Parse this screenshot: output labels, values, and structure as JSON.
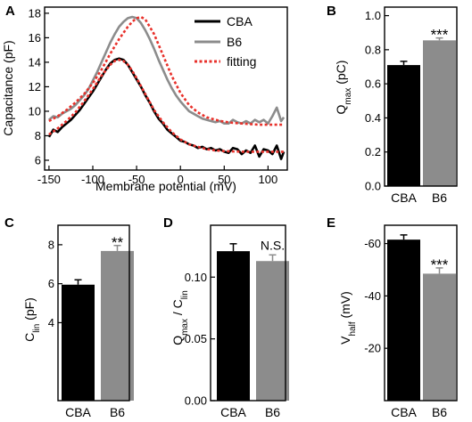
{
  "colors": {
    "cba": "#000000",
    "b6": "#8c8c8c",
    "fitting": "#e8312b",
    "axis": "#000000"
  },
  "chart_data": [
    {
      "panel": "A",
      "type": "line",
      "xlabel": "Membrane potential (mV)",
      "ylabel": "Capacitance (pF)",
      "xlim": [
        -155,
        122
      ],
      "ylim": [
        5.2,
        18.5
      ],
      "xticks": [
        -150,
        -100,
        -50,
        0,
        50,
        100
      ],
      "yticks": [
        6,
        8,
        10,
        12,
        14,
        16,
        18
      ],
      "legend": {
        "placement": "top-right",
        "entries": [
          "CBA",
          "B6",
          "fitting"
        ]
      },
      "series": [
        {
          "name": "CBA",
          "x": [
            -150,
            -145,
            -140,
            -135,
            -130,
            -125,
            -120,
            -115,
            -110,
            -105,
            -100,
            -95,
            -90,
            -85,
            -80,
            -75,
            -70,
            -65,
            -60,
            -55,
            -50,
            -45,
            -40,
            -35,
            -30,
            -25,
            -20,
            -15,
            -10,
            -5,
            0,
            5,
            10,
            15,
            20,
            25,
            30,
            35,
            40,
            45,
            50,
            55,
            60,
            65,
            70,
            75,
            80,
            85,
            90,
            95,
            100,
            105,
            110,
            115,
            118
          ],
          "y": [
            7.9,
            8.5,
            8.3,
            8.7,
            9.0,
            9.3,
            9.7,
            10.1,
            10.6,
            11.1,
            11.6,
            12.2,
            12.8,
            13.4,
            13.9,
            14.2,
            14.3,
            14.2,
            13.8,
            13.2,
            12.6,
            12.0,
            11.3,
            10.7,
            10.0,
            9.4,
            9.0,
            8.5,
            8.2,
            7.9,
            7.6,
            7.5,
            7.3,
            7.2,
            7.0,
            7.1,
            6.9,
            7.0,
            6.8,
            6.9,
            6.7,
            6.6,
            7.0,
            6.9,
            6.5,
            6.8,
            6.6,
            7.2,
            6.3,
            6.9,
            6.8,
            6.5,
            7.2,
            6.1,
            6.7
          ]
        },
        {
          "name": "B6",
          "x": [
            -150,
            -145,
            -140,
            -135,
            -130,
            -125,
            -120,
            -115,
            -110,
            -105,
            -100,
            -95,
            -90,
            -85,
            -80,
            -75,
            -70,
            -65,
            -60,
            -55,
            -50,
            -45,
            -40,
            -35,
            -30,
            -25,
            -20,
            -15,
            -10,
            -5,
            0,
            5,
            10,
            15,
            20,
            25,
            30,
            35,
            40,
            45,
            50,
            55,
            60,
            65,
            70,
            75,
            80,
            85,
            90,
            95,
            100,
            105,
            110,
            115,
            118
          ],
          "y": [
            9.3,
            9.6,
            9.5,
            9.8,
            10.0,
            10.2,
            10.5,
            10.9,
            11.3,
            11.8,
            12.5,
            13.2,
            14.0,
            14.8,
            15.6,
            16.3,
            16.9,
            17.3,
            17.6,
            17.7,
            17.6,
            17.2,
            16.6,
            15.9,
            15.1,
            14.2,
            13.4,
            12.6,
            11.9,
            11.3,
            10.8,
            10.4,
            10.0,
            9.8,
            9.6,
            9.4,
            9.3,
            9.2,
            9.1,
            9.2,
            9.0,
            9.0,
            9.3,
            9.1,
            9.0,
            9.2,
            9.0,
            9.3,
            9.1,
            9.3,
            9.0,
            9.6,
            10.3,
            9.2,
            9.5
          ]
        },
        {
          "name": "fitting",
          "x": [
            -150,
            -140,
            -130,
            -120,
            -110,
            -100,
            -90,
            -80,
            -75,
            -70,
            -65,
            -60,
            -55,
            -50,
            -40,
            -30,
            -20,
            -10,
            0,
            10,
            20,
            30,
            40,
            50,
            60,
            70,
            80,
            90,
            100,
            110,
            118
          ],
          "y": [
            8.1,
            8.6,
            9.2,
            9.9,
            10.8,
            11.8,
            12.9,
            13.8,
            14.1,
            14.2,
            14.1,
            13.8,
            13.3,
            12.7,
            11.4,
            10.1,
            9.1,
            8.3,
            7.7,
            7.3,
            7.1,
            6.9,
            6.8,
            6.75,
            6.72,
            6.7,
            6.7,
            6.7,
            6.7,
            6.7,
            6.7
          ]
        },
        {
          "name": "fitting",
          "x": [
            -150,
            -140,
            -130,
            -120,
            -110,
            -100,
            -90,
            -80,
            -70,
            -60,
            -55,
            -50,
            -45,
            -40,
            -30,
            -20,
            -10,
            0,
            10,
            20,
            30,
            40,
            50,
            60,
            70,
            80,
            90,
            100,
            110,
            118
          ],
          "y": [
            9.2,
            9.6,
            10.1,
            10.7,
            11.4,
            12.3,
            13.4,
            14.7,
            15.9,
            16.9,
            17.3,
            17.6,
            17.7,
            17.5,
            16.3,
            14.6,
            12.9,
            11.5,
            10.5,
            9.9,
            9.5,
            9.3,
            9.15,
            9.05,
            9.0,
            8.95,
            8.9,
            8.9,
            8.9,
            8.9
          ]
        }
      ]
    },
    {
      "panel": "B",
      "type": "bar",
      "categories": [
        "CBA",
        "B6"
      ],
      "values": [
        0.71,
        0.855
      ],
      "errors": [
        0.022,
        0.014
      ],
      "ylabel": "Q",
      "ylabel_sub": "max",
      "ylabel_unit": " (pC)",
      "ylim": [
        0,
        1.05
      ],
      "yticks": [
        "0.0",
        "0.2",
        "0.4",
        "0.6",
        "0.8",
        "1.0"
      ],
      "annotation": "***"
    },
    {
      "panel": "C",
      "type": "bar",
      "categories": [
        "CBA",
        "B6"
      ],
      "values": [
        5.95,
        7.68
      ],
      "errors": [
        0.25,
        0.28
      ],
      "ylabel": "C",
      "ylabel_sub": "lin",
      "ylabel_unit": " (pF)",
      "ylim": [
        0,
        9
      ],
      "yticks": [
        "4",
        "6",
        "8"
      ],
      "annotation": "**"
    },
    {
      "panel": "D",
      "type": "bar",
      "categories": [
        "CBA",
        "B6"
      ],
      "values": [
        0.121,
        0.113
      ],
      "errors": [
        0.006,
        0.005
      ],
      "ylabel": "Q",
      "ylabel_sub": "max",
      "ylabel_mid": " / C",
      "ylabel_sub2": "lin",
      "ylim": [
        0,
        0.142
      ],
      "yticks": [
        "0.00",
        "0.05",
        "0.10"
      ],
      "annotation": "N.S."
    },
    {
      "panel": "E",
      "type": "bar",
      "categories": [
        "CBA",
        "B6"
      ],
      "values": [
        61.5,
        48.5
      ],
      "errors": [
        1.8,
        2.2
      ],
      "ylabel": "V",
      "ylabel_sub": "half",
      "ylabel_unit": " (mV)",
      "ylim": [
        0,
        67
      ],
      "yticks": [
        "-60",
        "-40",
        "-20"
      ],
      "annotation": "***"
    }
  ]
}
